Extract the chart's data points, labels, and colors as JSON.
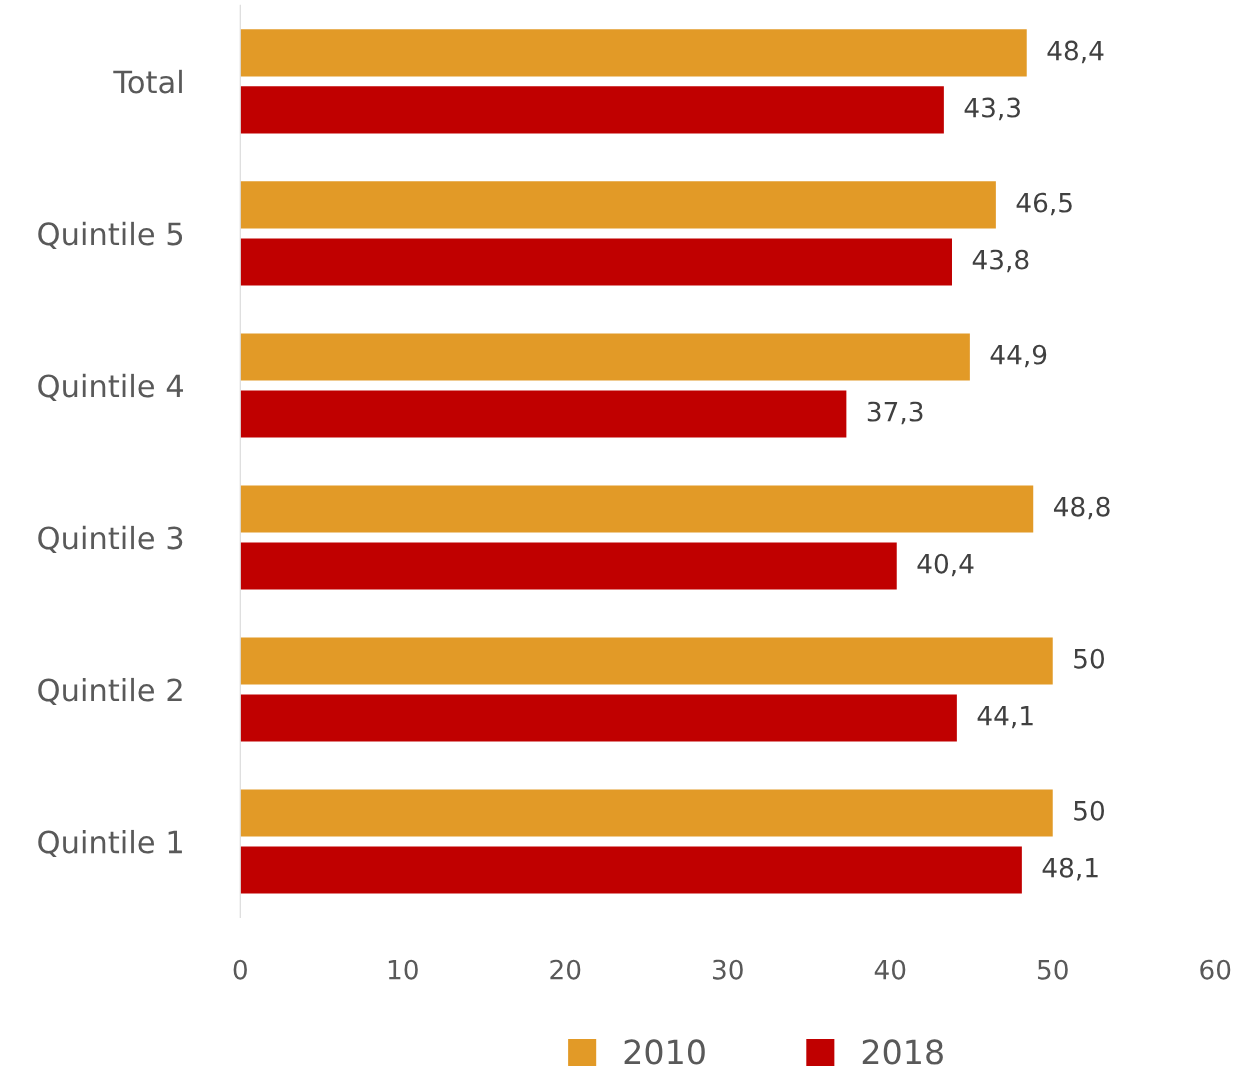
{
  "chart_data": {
    "type": "bar",
    "orientation": "horizontal",
    "categories": [
      "Total",
      "Quintile 5",
      "Quintile 4",
      "Quintile 3",
      "Quintile 2",
      "Quintile 1"
    ],
    "series": [
      {
        "name": "2010",
        "color": "#e29a27",
        "values": [
          48.4,
          46.5,
          44.9,
          48.8,
          50,
          50
        ],
        "value_labels": [
          "48,4",
          "46,5",
          "44,9",
          "48,8",
          "50",
          "50"
        ]
      },
      {
        "name": "2018",
        "color": "#c00000",
        "values": [
          43.3,
          43.8,
          37.3,
          40.4,
          44.1,
          48.1
        ],
        "value_labels": [
          "43,3",
          "43,8",
          "37,3",
          "40,4",
          "44,1",
          "48,1"
        ]
      }
    ],
    "xlim": [
      0,
      60
    ],
    "xticks": [
      0,
      10,
      20,
      30,
      40,
      50,
      60
    ],
    "grid": false,
    "legend": "bottom"
  }
}
